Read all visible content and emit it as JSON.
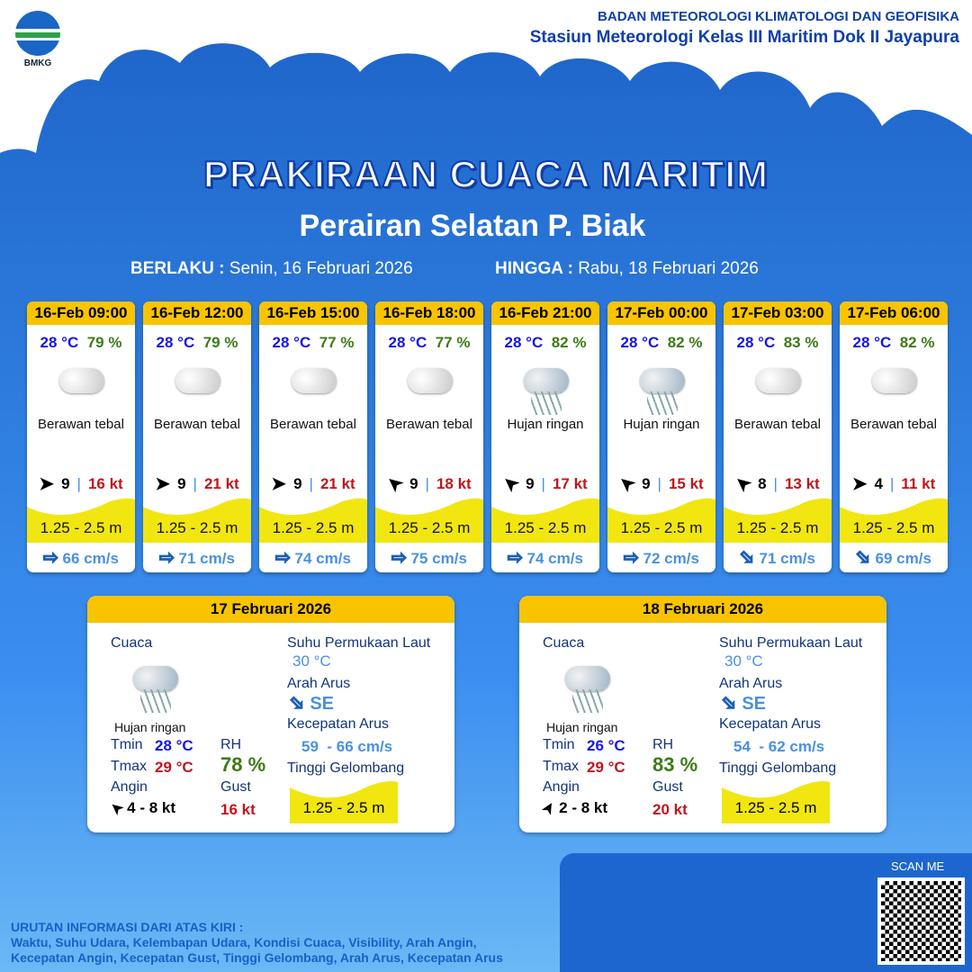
{
  "header": {
    "logo_text": "BMKG",
    "agency": "BADAN METEOROLOGI KLIMATOLOGI DAN GEOFISIKA",
    "station": "Stasiun Meteorologi Kelas III Maritim Dok II Jayapura"
  },
  "title": "PRAKIRAAN CUACA MARITIM",
  "subtitle": "Perairan Selatan P. Biak",
  "validity": {
    "from_label": "BERLAKU :",
    "from": "Senin, 16 Februari 2026",
    "to_label": "HINGGA :",
    "to": "Rabu, 18 Februari 2026"
  },
  "colors": {
    "header_yellow": "#f8c400",
    "temp": "#1515e8",
    "humidity": "#3e7a16",
    "gust": "#c0161c",
    "current": "#4a90e2",
    "wave": "#f2e611"
  },
  "cards": [
    {
      "time": "16-Feb 09:00",
      "temp": "28 °C",
      "rh": "79 %",
      "icon": "cloud-icon",
      "cond": "Berawan tebal",
      "wind_arrow": "east",
      "wind": "9",
      "gust": "16 kt",
      "wave": "1.25 - 2.5 m",
      "current_arrow": "east",
      "current": "66 cm/s"
    },
    {
      "time": "16-Feb 12:00",
      "temp": "28 °C",
      "rh": "79 %",
      "icon": "cloud-icon",
      "cond": "Berawan tebal",
      "wind_arrow": "east",
      "wind": "9",
      "gust": "21 kt",
      "wave": "1.25 - 2.5 m",
      "current_arrow": "east",
      "current": "71 cm/s"
    },
    {
      "time": "16-Feb 15:00",
      "temp": "28 °C",
      "rh": "77 %",
      "icon": "cloud-icon",
      "cond": "Berawan tebal",
      "wind_arrow": "east",
      "wind": "9",
      "gust": "21 kt",
      "wave": "1.25 - 2.5 m",
      "current_arrow": "east",
      "current": "74 cm/s"
    },
    {
      "time": "16-Feb 18:00",
      "temp": "28 °C",
      "rh": "77 %",
      "icon": "cloud-icon",
      "cond": "Berawan tebal",
      "wind_arrow": "southwest",
      "wind": "9",
      "gust": "18 kt",
      "wave": "1.25 - 2.5 m",
      "current_arrow": "east",
      "current": "75 cm/s"
    },
    {
      "time": "16-Feb 21:00",
      "temp": "28 °C",
      "rh": "82 %",
      "icon": "rain-cloud-icon",
      "cond": "Hujan ringan",
      "wind_arrow": "southwest",
      "wind": "9",
      "gust": "17 kt",
      "wave": "1.25 - 2.5 m",
      "current_arrow": "east",
      "current": "74 cm/s"
    },
    {
      "time": "17-Feb 00:00",
      "temp": "28 °C",
      "rh": "82 %",
      "icon": "rain-cloud-icon",
      "cond": "Hujan ringan",
      "wind_arrow": "southwest",
      "wind": "9",
      "gust": "15 kt",
      "wave": "1.25 - 2.5 m",
      "current_arrow": "east",
      "current": "72 cm/s"
    },
    {
      "time": "17-Feb 03:00",
      "temp": "28 °C",
      "rh": "83 %",
      "icon": "cloud-icon",
      "cond": "Berawan tebal",
      "wind_arrow": "southwest",
      "wind": "8",
      "gust": "13 kt",
      "wave": "1.25 - 2.5 m",
      "current_arrow": "southeast",
      "current": "71 cm/s"
    },
    {
      "time": "17-Feb 06:00",
      "temp": "28 °C",
      "rh": "82 %",
      "icon": "cloud-icon",
      "cond": "Berawan tebal",
      "wind_arrow": "east",
      "wind": "4",
      "gust": "11 kt",
      "wave": "1.25 - 2.5 m",
      "current_arrow": "southeast",
      "current": "69 cm/s"
    }
  ],
  "labels": {
    "weather": "Cuaca",
    "sst": "Suhu Permukaan Laut",
    "current_dir": "Arah Arus",
    "current_speed": "Kecepatan Arus",
    "wave": "Tinggi Gelombang",
    "tmin": "Tmin",
    "tmax": "Tmax",
    "rh": "RH",
    "wind": "Angin",
    "gust": "Gust"
  },
  "daily": [
    {
      "date": "17 Februari 2026",
      "cond": "Hujan ringan",
      "tmin": "28 °C",
      "tmax": "29 °C",
      "rh": "78 %",
      "wind": "4  - 8 kt",
      "gust": "16 kt",
      "sst": "30 °C",
      "current_dir": "SE",
      "current_speed": "59  - 66 cm/s",
      "wave": "1.25 - 2.5 m"
    },
    {
      "date": "18 Februari 2026",
      "cond": "Hujan ringan",
      "tmin": "26 °C",
      "tmax": "29 °C",
      "rh": "83 %",
      "wind": "2  - 8 kt",
      "gust": "20 kt",
      "sst": "30 °C",
      "current_dir": "SE",
      "current_speed": "54  - 62 cm/s",
      "wave": "1.25 - 2.5 m"
    }
  ],
  "footer": {
    "title": "URUTAN INFORMASI DARI ATAS KIRI :",
    "line1": "Waktu, Suhu Udara, Kelembapan Udara, Kondisi Cuaca, Visibility, Arah Angin,",
    "line2": "Kecepatan Angin, Kecepatan Gust, Tinggi Gelombang, Arah Arus, Kecepatan Arus",
    "scan": "SCAN ME"
  }
}
